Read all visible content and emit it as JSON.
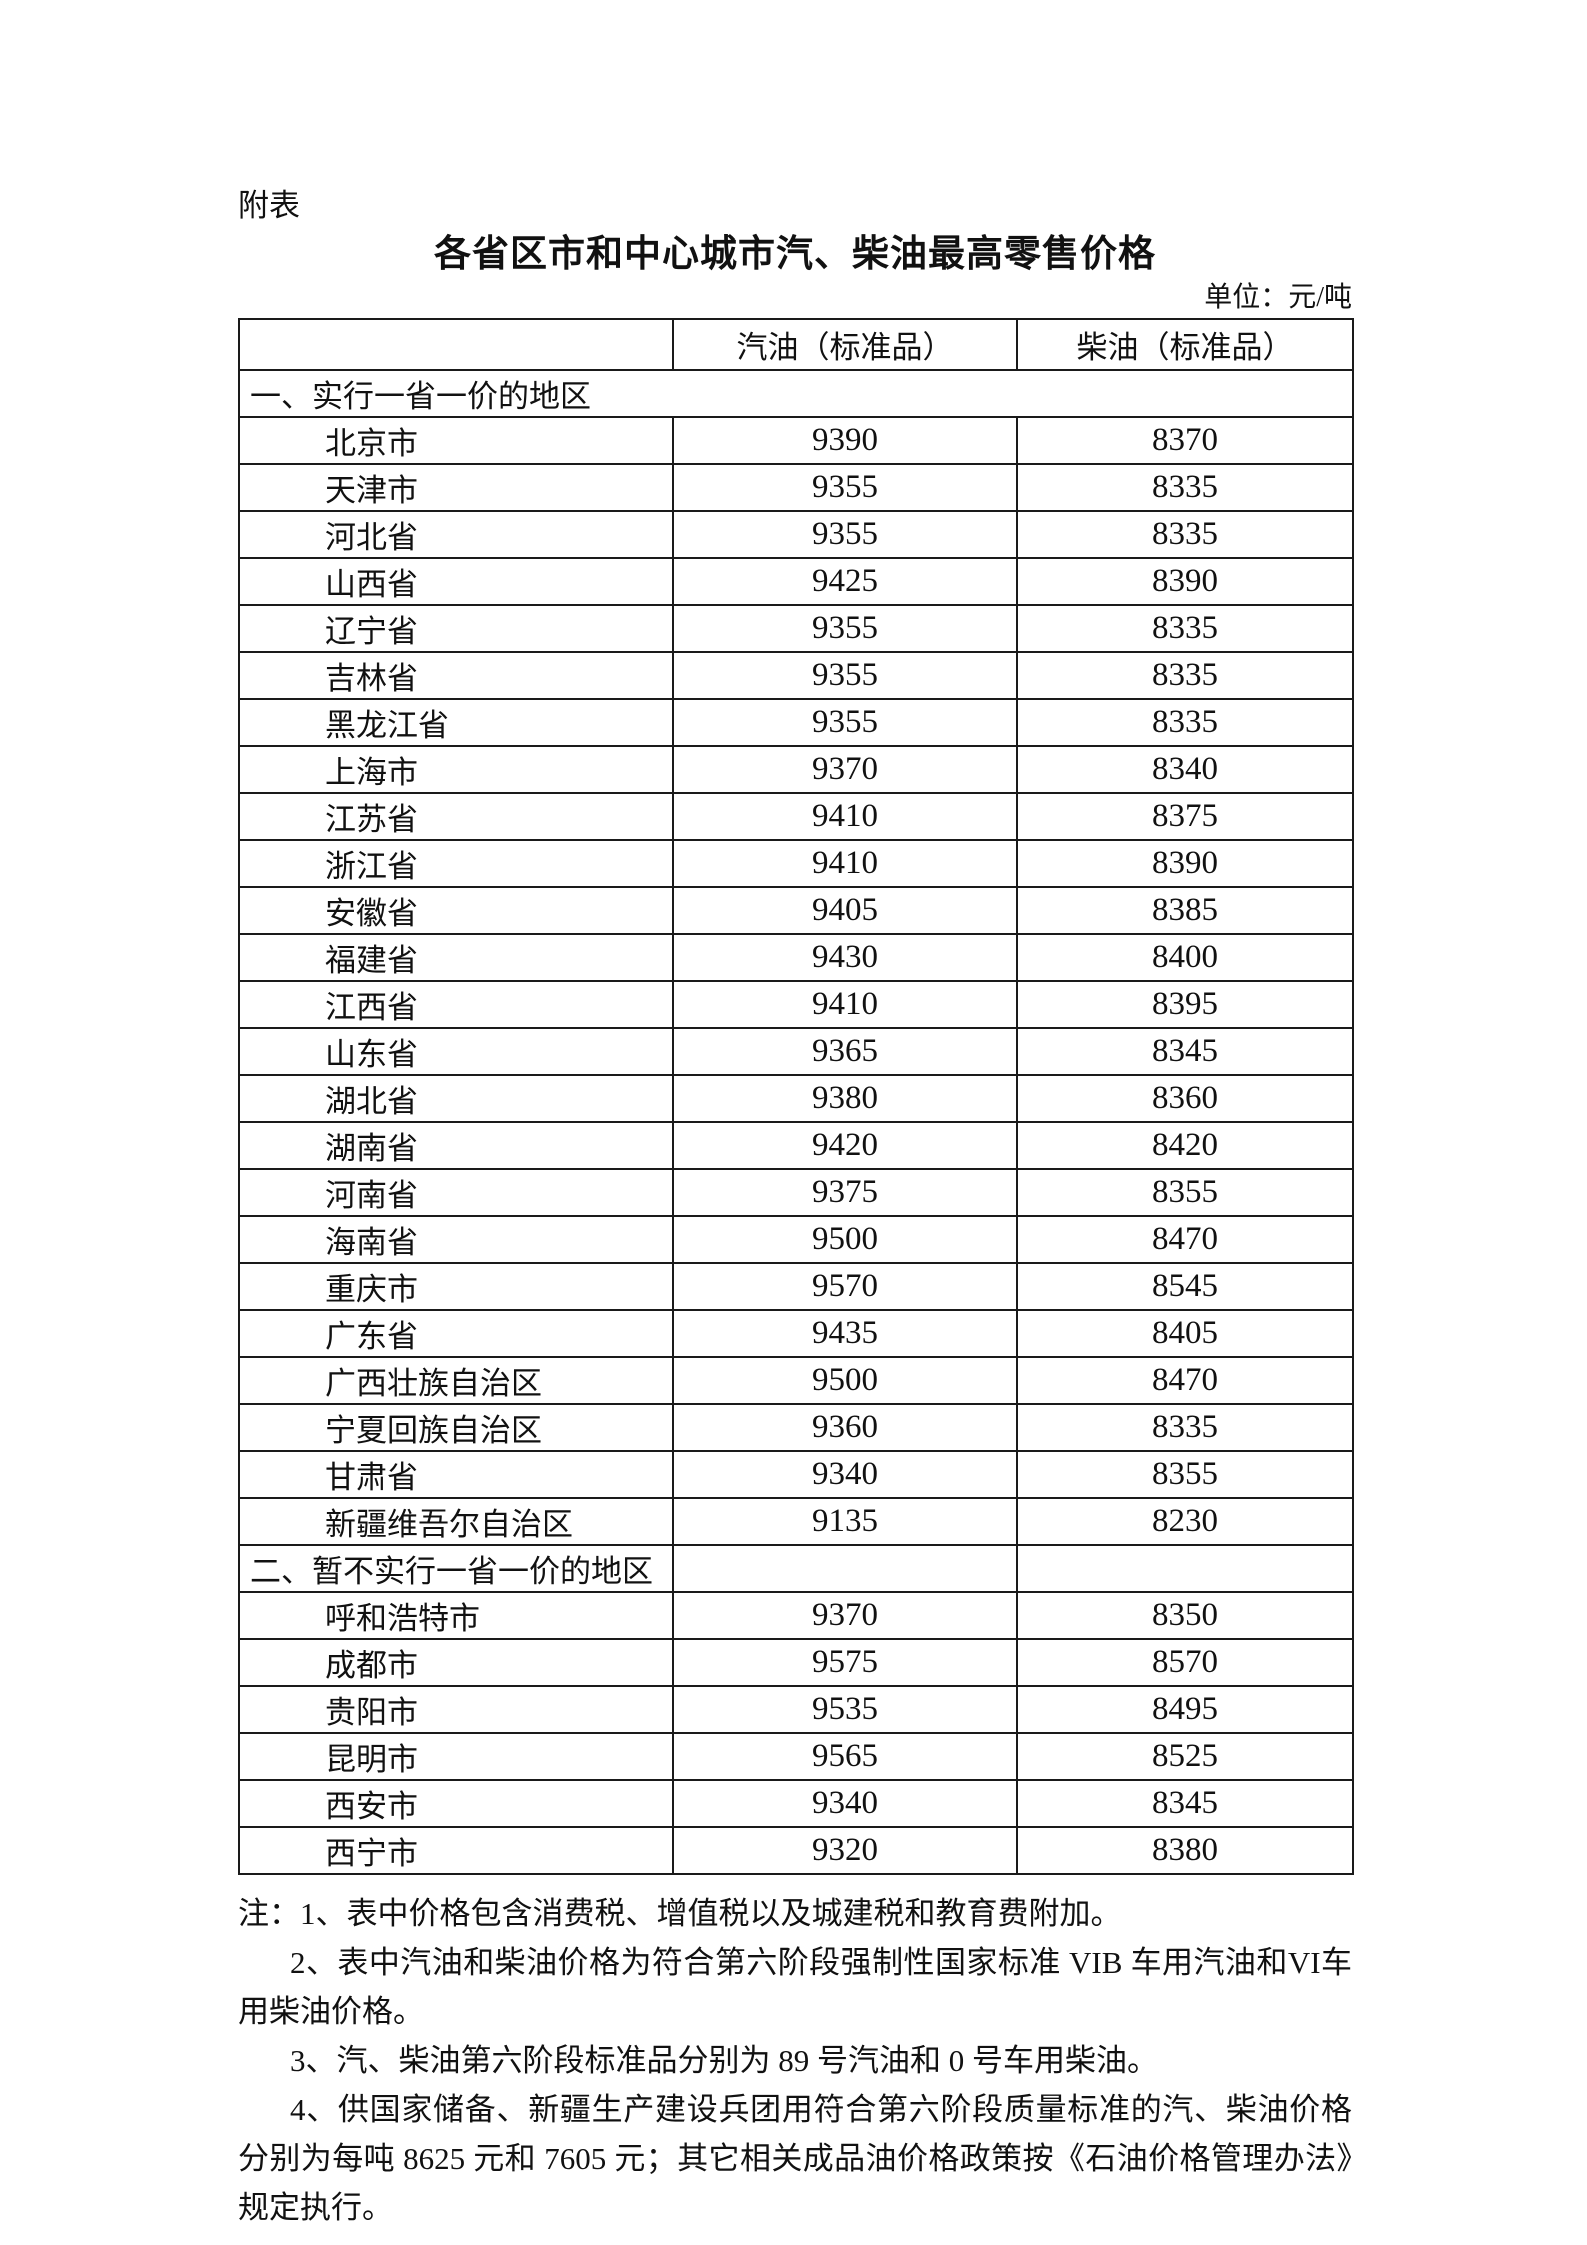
{
  "doc": {
    "appendix_label": "附表",
    "title": "各省区市和中心城市汽、柴油最高零售价格",
    "unit_label": "单位：元/吨"
  },
  "table": {
    "corner_header": "",
    "gasoline_header": "汽油（标准品）",
    "diesel_header": "柴油（标准品）",
    "sections": [
      {
        "heading": "一、实行一省一价的地区",
        "merged": true,
        "rows": [
          {
            "region": "北京市",
            "gasoline": "9390",
            "diesel": "8370"
          },
          {
            "region": "天津市",
            "gasoline": "9355",
            "diesel": "8335"
          },
          {
            "region": "河北省",
            "gasoline": "9355",
            "diesel": "8335"
          },
          {
            "region": "山西省",
            "gasoline": "9425",
            "diesel": "8390"
          },
          {
            "region": "辽宁省",
            "gasoline": "9355",
            "diesel": "8335"
          },
          {
            "region": "吉林省",
            "gasoline": "9355",
            "diesel": "8335"
          },
          {
            "region": "黑龙江省",
            "gasoline": "9355",
            "diesel": "8335"
          },
          {
            "region": "上海市",
            "gasoline": "9370",
            "diesel": "8340"
          },
          {
            "region": "江苏省",
            "gasoline": "9410",
            "diesel": "8375"
          },
          {
            "region": "浙江省",
            "gasoline": "9410",
            "diesel": "8390"
          },
          {
            "region": "安徽省",
            "gasoline": "9405",
            "diesel": "8385"
          },
          {
            "region": "福建省",
            "gasoline": "9430",
            "diesel": "8400"
          },
          {
            "region": "江西省",
            "gasoline": "9410",
            "diesel": "8395"
          },
          {
            "region": "山东省",
            "gasoline": "9365",
            "diesel": "8345"
          },
          {
            "region": "湖北省",
            "gasoline": "9380",
            "diesel": "8360"
          },
          {
            "region": "湖南省",
            "gasoline": "9420",
            "diesel": "8420"
          },
          {
            "region": "河南省",
            "gasoline": "9375",
            "diesel": "8355"
          },
          {
            "region": "海南省",
            "gasoline": "9500",
            "diesel": "8470"
          },
          {
            "region": "重庆市",
            "gasoline": "9570",
            "diesel": "8545"
          },
          {
            "region": "广东省",
            "gasoline": "9435",
            "diesel": "8405"
          },
          {
            "region": "广西壮族自治区",
            "gasoline": "9500",
            "diesel": "8470"
          },
          {
            "region": "宁夏回族自治区",
            "gasoline": "9360",
            "diesel": "8335"
          },
          {
            "region": "甘肃省",
            "gasoline": "9340",
            "diesel": "8355"
          },
          {
            "region": "新疆维吾尔自治区",
            "gasoline": "9135",
            "diesel": "8230"
          }
        ]
      },
      {
        "heading": "二、暂不实行一省一价的地区",
        "merged": false,
        "rows": [
          {
            "region": "呼和浩特市",
            "gasoline": "9370",
            "diesel": "8350"
          },
          {
            "region": "成都市",
            "gasoline": "9575",
            "diesel": "8570"
          },
          {
            "region": "贵阳市",
            "gasoline": "9535",
            "diesel": "8495"
          },
          {
            "region": "昆明市",
            "gasoline": "9565",
            "diesel": "8525"
          },
          {
            "region": "西安市",
            "gasoline": "9340",
            "diesel": "8345"
          },
          {
            "region": "西宁市",
            "gasoline": "9320",
            "diesel": "8380"
          }
        ]
      }
    ]
  },
  "notes": [
    "注：1、表中价格包含消费税、增值税以及城建税和教育费附加。",
    "2、表中汽油和柴油价格为符合第六阶段强制性国家标准 VIB 车用汽油和VI车用柴油价格。",
    "3、汽、柴油第六阶段标准品分别为 89 号汽油和 0 号车用柴油。",
    "4、供国家储备、新疆生产建设兵团用符合第六阶段质量标准的汽、柴油价格分别为每吨 8625 元和 7605 元；其它相关成品油价格政策按《石油价格管理办法》规定执行。"
  ]
}
